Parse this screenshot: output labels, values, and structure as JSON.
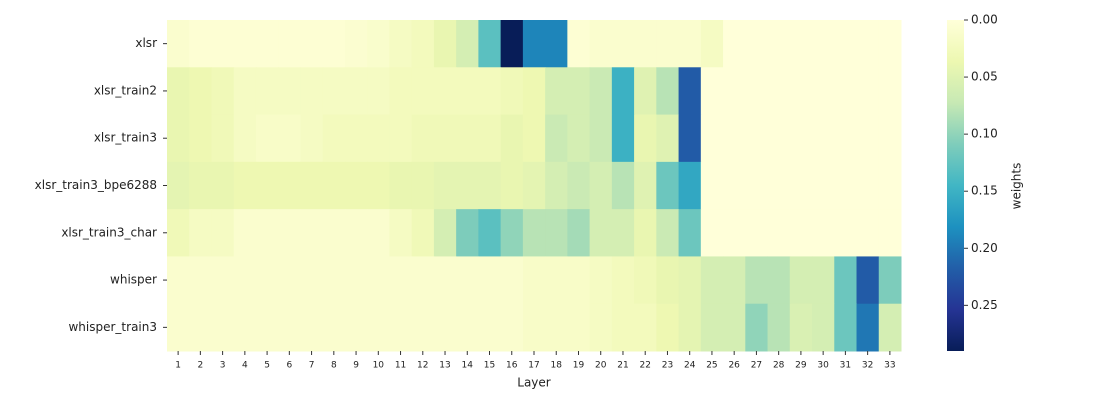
{
  "chart_data": {
    "type": "heatmap",
    "categories": [
      "1",
      "2",
      "3",
      "4",
      "5",
      "6",
      "7",
      "8",
      "9",
      "10",
      "11",
      "12",
      "13",
      "14",
      "15",
      "16",
      "17",
      "18",
      "19",
      "20",
      "21",
      "22",
      "23",
      "24",
      "25",
      "26",
      "27",
      "28",
      "29",
      "30",
      "31",
      "32",
      "33"
    ],
    "rows": [
      "xlsr",
      "xlsr_train2",
      "xlsr_train3",
      "xlsr_train3_bpe6288",
      "xlsr_train3_char",
      "whisper",
      "whisper_train3"
    ],
    "values": [
      [
        0.01,
        0.005,
        0.005,
        0.005,
        0.005,
        0.005,
        0.005,
        0.005,
        0.008,
        0.012,
        0.02,
        0.025,
        0.04,
        0.06,
        0.13,
        0.29,
        0.19,
        0.19,
        0.005,
        0.01,
        0.01,
        0.01,
        0.01,
        0.01,
        0.02,
        0,
        0,
        0,
        0,
        0,
        0,
        0,
        0
      ],
      [
        0.04,
        0.035,
        0.03,
        0.02,
        0.02,
        0.02,
        0.02,
        0.02,
        0.02,
        0.02,
        0.025,
        0.025,
        0.025,
        0.025,
        0.025,
        0.03,
        0.035,
        0.06,
        0.06,
        0.07,
        0.15,
        0.05,
        0.08,
        0.22,
        0,
        0,
        0,
        0,
        0,
        0,
        0,
        0,
        0
      ],
      [
        0.04,
        0.035,
        0.03,
        0.02,
        0.015,
        0.015,
        0.02,
        0.025,
        0.025,
        0.025,
        0.025,
        0.03,
        0.03,
        0.03,
        0.03,
        0.04,
        0.035,
        0.07,
        0.06,
        0.07,
        0.15,
        0.04,
        0.05,
        0.22,
        0,
        0,
        0,
        0,
        0,
        0,
        0,
        0,
        0
      ],
      [
        0.045,
        0.04,
        0.04,
        0.035,
        0.035,
        0.035,
        0.035,
        0.035,
        0.035,
        0.035,
        0.04,
        0.04,
        0.045,
        0.045,
        0.045,
        0.04,
        0.045,
        0.06,
        0.07,
        0.06,
        0.08,
        0.05,
        0.12,
        0.16,
        0,
        0,
        0,
        0,
        0,
        0,
        0,
        0,
        0
      ],
      [
        0.03,
        0.02,
        0.02,
        0.01,
        0.01,
        0.01,
        0.01,
        0.01,
        0.01,
        0.01,
        0.02,
        0.03,
        0.06,
        0.11,
        0.13,
        0.1,
        0.08,
        0.08,
        0.09,
        0.06,
        0.06,
        0.04,
        0.07,
        0.12,
        0,
        0,
        0,
        0,
        0,
        0,
        0,
        0,
        0
      ],
      [
        0.01,
        0.01,
        0.01,
        0.01,
        0.01,
        0.01,
        0.01,
        0.01,
        0.01,
        0.01,
        0.01,
        0.01,
        0.01,
        0.01,
        0.01,
        0.01,
        0.015,
        0.015,
        0.015,
        0.02,
        0.025,
        0.03,
        0.04,
        0.045,
        0.06,
        0.06,
        0.08,
        0.08,
        0.06,
        0.06,
        0.12,
        0.22,
        0.11
      ],
      [
        0.01,
        0.01,
        0.01,
        0.01,
        0.01,
        0.01,
        0.01,
        0.01,
        0.01,
        0.01,
        0.01,
        0.01,
        0.01,
        0.01,
        0.01,
        0.01,
        0.015,
        0.015,
        0.015,
        0.02,
        0.025,
        0.025,
        0.035,
        0.045,
        0.06,
        0.06,
        0.1,
        0.08,
        0.055,
        0.06,
        0.12,
        0.2,
        0.06
      ]
    ],
    "xlabel": "Layer",
    "colorbar_label": "weights",
    "colormap": "YlGnBu",
    "clim": [
      0,
      0.29
    ],
    "cticks": [
      {
        "value": 0,
        "label": "0.00"
      },
      {
        "value": 0.05,
        "label": "0.05"
      },
      {
        "value": 0.1,
        "label": "0.10"
      },
      {
        "value": 0.15,
        "label": "0.15"
      },
      {
        "value": 0.2,
        "label": "0.20"
      },
      {
        "value": 0.25,
        "label": "0.25"
      }
    ]
  }
}
